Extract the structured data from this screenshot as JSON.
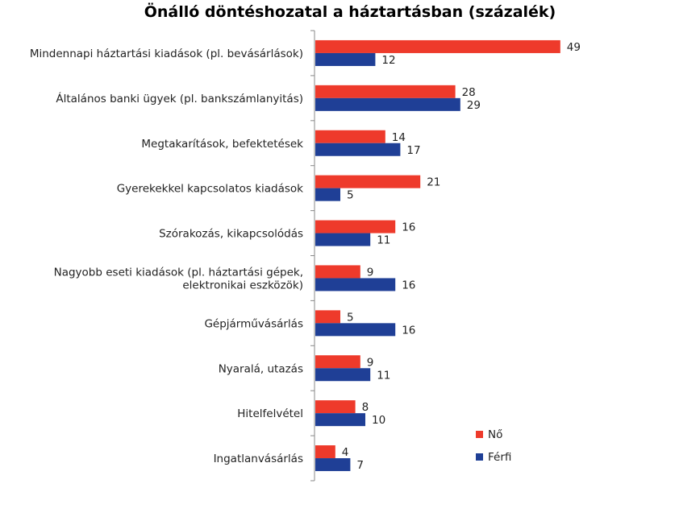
{
  "chart_data": {
    "type": "bar",
    "orientation": "horizontal",
    "title": "Önálló döntéshozatal a háztartásban (százalék)",
    "categories": [
      [
        "Mindennapi háztartási kiadások (pl. bevásárlások)"
      ],
      [
        "Általános banki ügyek (pl. bankszámlanyitás)"
      ],
      [
        "Megtakarítások, befektetések"
      ],
      [
        "Gyerekekkel kapcsolatos kiadások"
      ],
      [
        "Szórakozás, kikapcsolódás"
      ],
      [
        "Nagyobb eseti kiadások (pl. háztartási gépek,",
        "elektronikai eszközök)"
      ],
      [
        "Gépjárművásárlás"
      ],
      [
        "Nyaralá, utazás"
      ],
      [
        "Hitelfelvétel"
      ],
      [
        "Ingatlanvásárlás"
      ]
    ],
    "series": [
      {
        "name": "Nő",
        "color": "#ee3a2b",
        "values": [
          49,
          28,
          14,
          21,
          16,
          9,
          5,
          9,
          8,
          4
        ]
      },
      {
        "name": "Férfi",
        "color": "#1f3f96",
        "values": [
          12,
          29,
          17,
          5,
          11,
          16,
          16,
          11,
          10,
          7
        ]
      }
    ],
    "xlim": [
      0,
      50
    ],
    "data_labels": true,
    "legend_position": "bottom-right",
    "grid": false
  }
}
